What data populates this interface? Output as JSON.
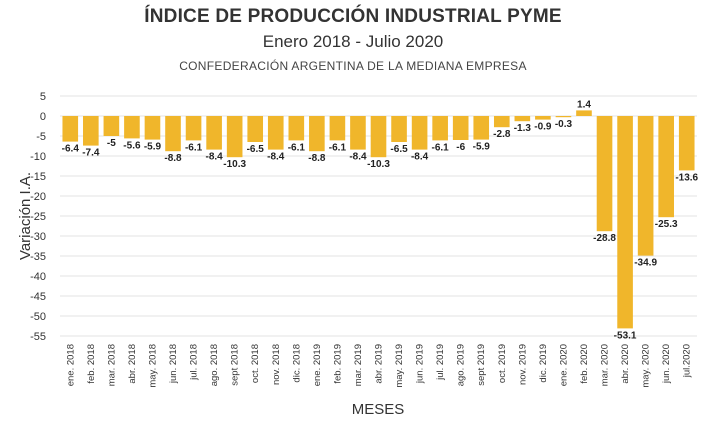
{
  "header": {
    "title": "ÍNDICE DE PRODUCCIÓN INDUSTRIAL PYME",
    "subtitle": "Enero 2018 - Julio 2020",
    "source": "CONFEDERACIÓN ARGENTINA DE LA MEDIANA EMPRESA"
  },
  "colors": {
    "bar": "#F0B62B",
    "grid": "#e3e3e3"
  },
  "chart_data": {
    "type": "bar",
    "title": "ÍNDICE DE PRODUCCIÓN INDUSTRIAL PYME",
    "subtitle": "Enero 2018 - Julio 2020",
    "xlabel": "MESES",
    "ylabel": "Variación I.A.",
    "ylim": [
      -55,
      5
    ],
    "yticks": [
      5,
      0,
      -5,
      -10,
      -15,
      -20,
      -25,
      -30,
      -35,
      -40,
      -45,
      -50,
      -55
    ],
    "grid": true,
    "categories": [
      "ene. 2018",
      "feb. 2018",
      "mar. 2018",
      "abr. 2018",
      "may. 2018",
      "jun. 2018",
      "jul. 2018",
      "ago. 2018",
      "sept 2018",
      "oct. 2018",
      "nov. 2018",
      "dic. 2018",
      "ene. 2019",
      "feb. 2019",
      "mar. 2019",
      "abr. 2019",
      "may. 2019",
      "jun. 2019",
      "jul. 2019",
      "ago. 2019",
      "sept 2019",
      "oct. 2019",
      "nov. 2019",
      "dic. 2019",
      "ene. 2020",
      "feb. 2020",
      "mar. 2020",
      "abr. 2020",
      "may. 2020",
      "jun. 2020",
      "jul.2020"
    ],
    "values": [
      -6.4,
      -7.4,
      -5,
      -5.6,
      -5.9,
      -8.8,
      -6.1,
      -8.4,
      -10.3,
      -6.5,
      -8.4,
      -6.1,
      -8.8,
      -6.1,
      -8.4,
      -10.3,
      -6.5,
      -8.4,
      -6.1,
      -6,
      -5.9,
      -2.8,
      -1.3,
      -0.9,
      -0.3,
      1.4,
      -28.8,
      -53.1,
      -34.9,
      -25.3,
      -13.6
    ]
  }
}
